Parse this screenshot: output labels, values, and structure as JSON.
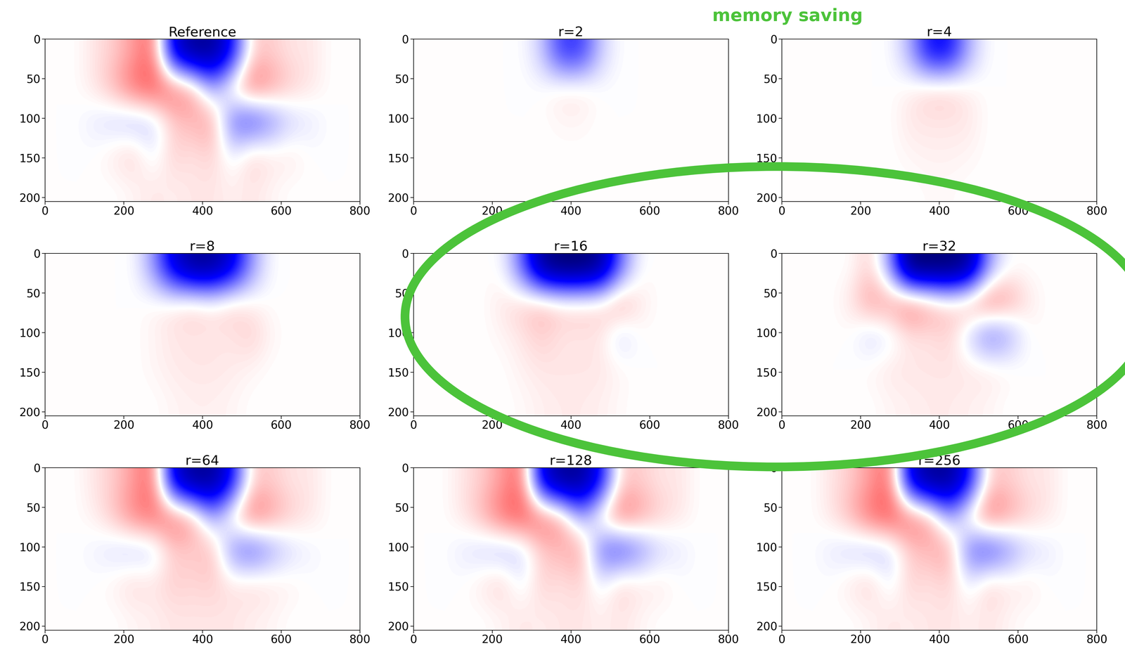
{
  "chart_data": [
    {
      "type": "heatmap",
      "title": "Reference",
      "xlim": [
        0,
        800
      ],
      "ylim": [
        205,
        0
      ],
      "xticks": [
        0,
        200,
        400,
        600,
        800
      ],
      "yticks": [
        0,
        50,
        100,
        150,
        200
      ],
      "clim": [
        -1,
        1
      ],
      "cells": [
        [
          0,
          0,
          0.05,
          0.1,
          0.2,
          0.3,
          -0.6,
          -0.8,
          -0.8,
          -0.5,
          0.1,
          0.1,
          0.05,
          0.05,
          0,
          0
        ],
        [
          0,
          0,
          0.05,
          0.15,
          0.3,
          0.35,
          0.3,
          0.2,
          -0.2,
          0.1,
          0.3,
          0.2,
          0.1,
          0.05,
          0,
          0
        ],
        [
          0,
          0,
          -0.05,
          -0.1,
          -0.15,
          -0.1,
          0.1,
          0.15,
          0.2,
          -0.3,
          -0.4,
          -0.25,
          -0.1,
          -0.05,
          0,
          0
        ],
        [
          0,
          0,
          0,
          0.05,
          0.1,
          -0.05,
          0.1,
          0.05,
          0.1,
          -0.05,
          0.1,
          0.05,
          0.05,
          0,
          0,
          0
        ],
        [
          0,
          0,
          0,
          0,
          0.02,
          0.05,
          0.03,
          0.05,
          0.05,
          0.03,
          0.05,
          0.02,
          0,
          0,
          0,
          0
        ]
      ]
    },
    {
      "type": "heatmap",
      "title": "r=2",
      "xlim": [
        0,
        800
      ],
      "ylim": [
        205,
        0
      ],
      "xticks": [
        0,
        200,
        400,
        600,
        800
      ],
      "yticks": [
        0,
        50,
        100,
        150,
        200
      ],
      "clim": [
        -1,
        1
      ],
      "cells": [
        [
          0,
          0,
          0,
          0,
          0,
          0,
          -0.1,
          -0.4,
          -0.4,
          -0.1,
          0,
          0,
          0,
          0,
          0,
          0
        ],
        [
          0,
          0,
          0,
          0,
          0,
          0,
          0,
          0.05,
          0.05,
          0,
          0,
          0,
          0,
          0,
          0,
          0
        ],
        [
          0,
          0,
          0,
          0,
          0,
          0,
          0,
          0.02,
          0.02,
          0,
          0,
          0,
          0,
          0,
          0,
          0
        ],
        [
          0,
          0,
          0,
          0,
          0,
          0,
          0,
          0,
          0,
          0,
          0,
          0,
          0,
          0,
          0,
          0
        ],
        [
          0,
          0,
          0,
          0,
          0,
          0,
          0,
          0,
          0,
          0,
          0,
          0,
          0,
          0,
          0,
          0
        ]
      ]
    },
    {
      "type": "heatmap",
      "title": "r=4",
      "xlim": [
        0,
        800
      ],
      "ylim": [
        205,
        0
      ],
      "xticks": [
        0,
        200,
        400,
        600,
        800
      ],
      "yticks": [
        0,
        50,
        100,
        150,
        200
      ],
      "clim": [
        -1,
        1
      ],
      "cells": [
        [
          0,
          0,
          0,
          0,
          0,
          0,
          -0.15,
          -0.5,
          -0.5,
          -0.15,
          0,
          0,
          0,
          0,
          0,
          0
        ],
        [
          0,
          0,
          0,
          0,
          0,
          0,
          0.03,
          0.1,
          0.1,
          0.03,
          0,
          0,
          0,
          0,
          0,
          0
        ],
        [
          0,
          0,
          0,
          0,
          0,
          0,
          0.05,
          0.05,
          0.05,
          0.05,
          0,
          0,
          0,
          0,
          0,
          0
        ],
        [
          0,
          0,
          0,
          0,
          0,
          0,
          0.02,
          0.03,
          0.03,
          0.02,
          0,
          0,
          0,
          0,
          0,
          0
        ],
        [
          0,
          0,
          0,
          0,
          0,
          0,
          0,
          0.01,
          0.01,
          0,
          0,
          0,
          0,
          0,
          0,
          0
        ]
      ]
    },
    {
      "type": "heatmap",
      "title": "r=8",
      "xlim": [
        0,
        800
      ],
      "ylim": [
        205,
        0
      ],
      "xticks": [
        0,
        200,
        400,
        600,
        800
      ],
      "yticks": [
        0,
        50,
        100,
        150,
        200
      ],
      "clim": [
        -1,
        1
      ],
      "cells": [
        [
          0,
          0,
          0,
          0,
          0,
          -0.2,
          -0.6,
          -0.8,
          -0.8,
          -0.6,
          -0.2,
          0,
          0,
          0,
          0,
          0
        ],
        [
          0,
          0,
          0,
          0,
          0,
          0.02,
          0.05,
          0.1,
          0.05,
          0.1,
          0.03,
          0,
          0,
          0,
          0,
          0
        ],
        [
          0,
          0,
          0,
          0,
          0,
          0.02,
          0.05,
          0.05,
          0.05,
          0.05,
          0.1,
          0.02,
          0,
          0,
          0,
          0
        ],
        [
          0,
          0,
          0,
          0,
          0,
          0.02,
          0.04,
          0.05,
          0.05,
          0.04,
          0.02,
          0,
          0,
          0,
          0,
          0
        ],
        [
          0,
          0,
          0,
          0,
          0,
          0,
          0.02,
          0.03,
          0.03,
          0.02,
          0,
          0,
          0,
          0,
          0,
          0
        ]
      ]
    },
    {
      "type": "heatmap",
      "title": "r=16",
      "xlim": [
        0,
        800
      ],
      "ylim": [
        205,
        0
      ],
      "xticks": [
        0,
        200,
        400,
        600,
        800
      ],
      "yticks": [
        0,
        50,
        100,
        150,
        200
      ],
      "clim": [
        -1,
        1
      ],
      "cells": [
        [
          0,
          0,
          0,
          0,
          0,
          -0.3,
          -0.8,
          -0.9,
          -0.9,
          -0.8,
          -0.3,
          0,
          0,
          0,
          0,
          0
        ],
        [
          0,
          0,
          0,
          0,
          0.05,
          0.1,
          0.15,
          0.1,
          0.1,
          0.1,
          0.2,
          0.05,
          0,
          0,
          0,
          0
        ],
        [
          0,
          0,
          0,
          0,
          0.02,
          0.05,
          0.1,
          0.05,
          0.05,
          0.05,
          -0.1,
          0,
          0,
          0,
          0,
          0
        ],
        [
          0,
          0,
          0,
          0,
          0,
          0.03,
          0.05,
          0.05,
          0.05,
          0.05,
          0.02,
          0,
          0,
          0,
          0,
          0
        ],
        [
          0,
          0,
          0,
          0,
          0,
          0.01,
          0.03,
          0.04,
          0.04,
          0.03,
          0.01,
          0,
          0,
          0,
          0,
          0
        ]
      ]
    },
    {
      "type": "heatmap",
      "title": "r=32",
      "xlim": [
        0,
        800
      ],
      "ylim": [
        205,
        0
      ],
      "xticks": [
        0,
        200,
        400,
        600,
        800
      ],
      "yticks": [
        0,
        50,
        100,
        150,
        200
      ],
      "clim": [
        -1,
        1
      ],
      "cells": [
        [
          0,
          0,
          0,
          0,
          0.1,
          -0.2,
          -0.9,
          -0.9,
          -0.9,
          -0.8,
          -0.2,
          0,
          0,
          0,
          0,
          0
        ],
        [
          0,
          0,
          0,
          0.05,
          0.2,
          0.2,
          0.3,
          0.2,
          0.1,
          0.2,
          0.3,
          0.2,
          0.05,
          0,
          0,
          0
        ],
        [
          0,
          0,
          0,
          0,
          -0.1,
          -0.05,
          0.05,
          0.05,
          0.1,
          -0.1,
          -0.3,
          -0.2,
          0,
          0,
          0,
          0
        ],
        [
          0,
          0,
          0,
          0,
          0.02,
          0.05,
          0.05,
          0.05,
          0.05,
          0.05,
          0.05,
          0.02,
          0,
          0,
          0,
          0
        ],
        [
          0,
          0,
          0,
          0,
          0,
          0.02,
          0.03,
          0.04,
          0.04,
          0.03,
          0.02,
          0,
          0,
          0,
          0,
          0
        ]
      ]
    },
    {
      "type": "heatmap",
      "title": "r=64",
      "xlim": [
        0,
        800
      ],
      "ylim": [
        205,
        0
      ],
      "xticks": [
        0,
        200,
        400,
        600,
        800
      ],
      "yticks": [
        0,
        50,
        100,
        150,
        200
      ],
      "clim": [
        -1,
        1
      ],
      "cells": [
        [
          0,
          0,
          0.05,
          0.1,
          0.2,
          0.3,
          -0.6,
          -0.8,
          -0.8,
          -0.5,
          0.1,
          0.1,
          0.05,
          0.05,
          0,
          0
        ],
        [
          0,
          0,
          0.03,
          0.12,
          0.25,
          0.3,
          0.3,
          0.2,
          -0.2,
          0.1,
          0.3,
          0.2,
          0.1,
          0.05,
          0,
          0
        ],
        [
          0,
          0,
          -0.03,
          -0.08,
          -0.12,
          -0.1,
          0.1,
          0.1,
          0.15,
          -0.25,
          -0.35,
          -0.2,
          -0.08,
          -0.03,
          0,
          0
        ],
        [
          0,
          0,
          0,
          0.03,
          0.08,
          0.05,
          0.1,
          0.08,
          0.1,
          0.05,
          0.08,
          0.05,
          0.03,
          0,
          0,
          0
        ],
        [
          0,
          0,
          0,
          0,
          0.02,
          0.03,
          0.05,
          0.05,
          0.05,
          0.05,
          0.03,
          0.02,
          0,
          0,
          0,
          0
        ]
      ]
    },
    {
      "type": "heatmap",
      "title": "r=128",
      "xlim": [
        0,
        800
      ],
      "ylim": [
        205,
        0
      ],
      "xticks": [
        0,
        200,
        400,
        600,
        800
      ],
      "yticks": [
        0,
        50,
        100,
        150,
        200
      ],
      "clim": [
        -1,
        1
      ],
      "cells": [
        [
          0,
          0,
          0.05,
          0.1,
          0.2,
          0.3,
          -0.6,
          -0.8,
          -0.8,
          -0.5,
          0.1,
          0.1,
          0.05,
          0.05,
          0,
          0
        ],
        [
          0,
          0,
          0.05,
          0.15,
          0.3,
          0.35,
          0.3,
          0.2,
          -0.2,
          0.1,
          0.3,
          0.2,
          0.1,
          0.05,
          0,
          0
        ],
        [
          0,
          0,
          -0.05,
          -0.1,
          -0.15,
          -0.1,
          0.1,
          0.15,
          0.2,
          -0.3,
          -0.4,
          -0.25,
          -0.1,
          -0.05,
          0,
          0
        ],
        [
          0,
          0,
          0,
          0.05,
          0.1,
          -0.05,
          0.1,
          0.05,
          0.1,
          -0.05,
          0.1,
          0.05,
          0.05,
          0,
          0,
          0
        ],
        [
          0,
          0,
          0,
          0,
          0.02,
          0.05,
          0.03,
          0.05,
          0.05,
          0.03,
          0.05,
          0.02,
          0,
          0,
          0,
          0
        ]
      ]
    },
    {
      "type": "heatmap",
      "title": "r=256",
      "xlim": [
        0,
        800
      ],
      "ylim": [
        205,
        0
      ],
      "xticks": [
        0,
        200,
        400,
        600,
        800
      ],
      "yticks": [
        0,
        50,
        100,
        150,
        200
      ],
      "clim": [
        -1,
        1
      ],
      "cells": [
        [
          0,
          0,
          0.05,
          0.1,
          0.2,
          0.3,
          -0.6,
          -0.8,
          -0.8,
          -0.5,
          0.1,
          0.1,
          0.05,
          0.05,
          0,
          0
        ],
        [
          0,
          0,
          0.05,
          0.15,
          0.3,
          0.35,
          0.3,
          0.2,
          -0.2,
          0.1,
          0.3,
          0.2,
          0.1,
          0.05,
          0,
          0
        ],
        [
          0,
          0,
          -0.05,
          -0.1,
          -0.15,
          -0.1,
          0.1,
          0.15,
          0.2,
          -0.3,
          -0.4,
          -0.25,
          -0.1,
          -0.05,
          0,
          0
        ],
        [
          0,
          0,
          0,
          0.05,
          0.1,
          -0.05,
          0.1,
          0.05,
          0.1,
          -0.05,
          0.1,
          0.05,
          0.05,
          0,
          0,
          0
        ],
        [
          0,
          0,
          0,
          0,
          0.02,
          0.05,
          0.03,
          0.05,
          0.05,
          0.03,
          0.05,
          0.02,
          0,
          0,
          0,
          0
        ]
      ]
    }
  ],
  "annotations": [
    {
      "text": "memory saving",
      "color": "#4cc33a"
    }
  ]
}
